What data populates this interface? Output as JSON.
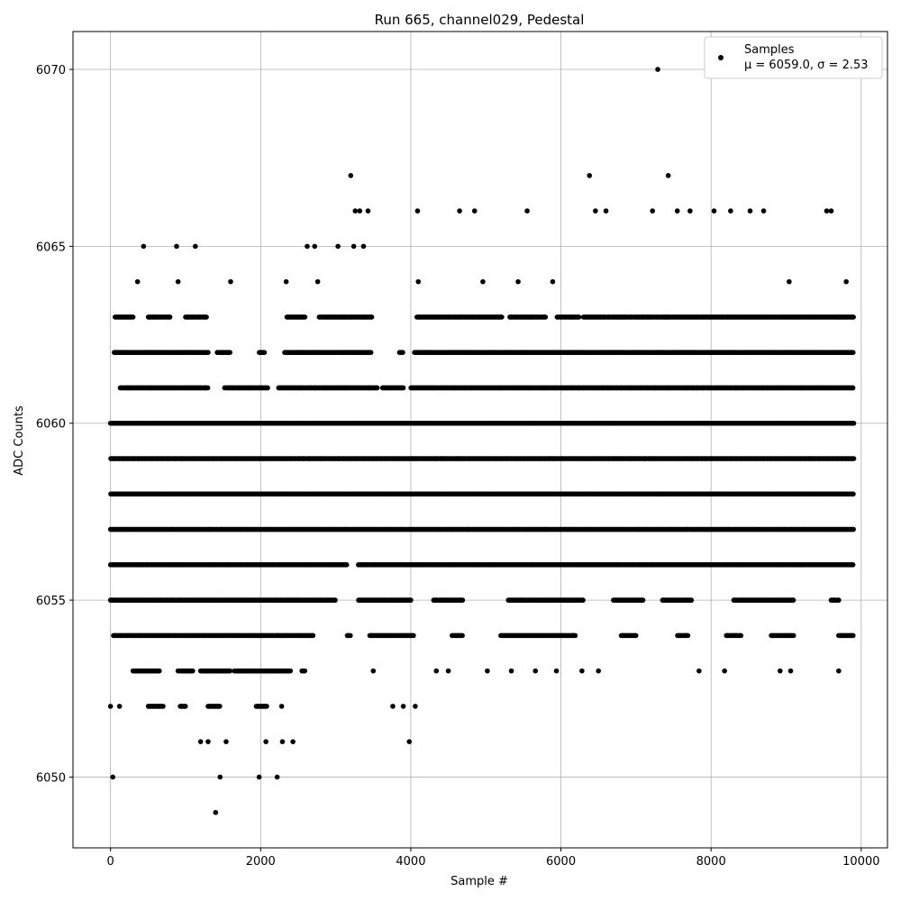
{
  "chart_data": {
    "type": "scatter",
    "title": "Run 665, channel029, Pedestal",
    "xlabel": "Sample #",
    "ylabel": "ADC Counts",
    "xlim": [
      -500,
      10350
    ],
    "ylim": [
      6048,
      6071.07
    ],
    "x_ticks": [
      0,
      2000,
      4000,
      6000,
      8000,
      10000
    ],
    "y_ticks": [
      6050,
      6055,
      6060,
      6065,
      6070
    ],
    "grid": true,
    "legend": {
      "placement": "top-right",
      "entries": [
        {
          "label_line1": "Samples",
          "label_line2": "μ = 6059.0, σ = 2.53"
        }
      ]
    },
    "series": [
      {
        "name": "Samples",
        "color": "#000000",
        "points": [
          {
            "x": 0,
            "y": 6052
          },
          {
            "x": 30,
            "y": 6050
          },
          {
            "x": 120,
            "y": 6052
          },
          {
            "x": 1400,
            "y": 6049
          },
          {
            "x": 1460,
            "y": 6050
          },
          {
            "x": 1980,
            "y": 6050
          },
          {
            "x": 2220,
            "y": 6050
          },
          {
            "x": 3200,
            "y": 6067
          },
          {
            "x": 6380,
            "y": 6067
          },
          {
            "x": 7430,
            "y": 6067
          },
          {
            "x": 7290,
            "y": 6070
          },
          {
            "x": 3980,
            "y": 6051
          },
          {
            "x": 1200,
            "y": 6051
          },
          {
            "x": 1300,
            "y": 6051
          },
          {
            "x": 1540,
            "y": 6051
          },
          {
            "x": 2070,
            "y": 6051
          },
          {
            "x": 2290,
            "y": 6051
          },
          {
            "x": 2430,
            "y": 6051
          },
          {
            "x": 440,
            "y": 6065
          },
          {
            "x": 880,
            "y": 6065
          },
          {
            "x": 1130,
            "y": 6065
          },
          {
            "x": 2620,
            "y": 6065
          },
          {
            "x": 2720,
            "y": 6065
          },
          {
            "x": 3030,
            "y": 6065
          },
          {
            "x": 3240,
            "y": 6065
          },
          {
            "x": 3370,
            "y": 6065
          },
          {
            "x": 4090,
            "y": 6066
          },
          {
            "x": 4650,
            "y": 6066
          },
          {
            "x": 4850,
            "y": 6066
          },
          {
            "x": 5550,
            "y": 6066
          },
          {
            "x": 6460,
            "y": 6066
          },
          {
            "x": 6600,
            "y": 6066
          },
          {
            "x": 7220,
            "y": 6066
          },
          {
            "x": 7550,
            "y": 6066
          },
          {
            "x": 7720,
            "y": 6066
          },
          {
            "x": 8040,
            "y": 6066
          },
          {
            "x": 8260,
            "y": 6066
          },
          {
            "x": 8520,
            "y": 6066
          },
          {
            "x": 8700,
            "y": 6066
          },
          {
            "x": 9540,
            "y": 6066
          },
          {
            "x": 9600,
            "y": 6066
          },
          {
            "x": 3260,
            "y": 6066
          },
          {
            "x": 3320,
            "y": 6066
          },
          {
            "x": 3430,
            "y": 6066
          },
          {
            "x": 360,
            "y": 6064
          },
          {
            "x": 900,
            "y": 6064
          },
          {
            "x": 1600,
            "y": 6064
          },
          {
            "x": 2340,
            "y": 6064
          },
          {
            "x": 2760,
            "y": 6064
          },
          {
            "x": 4100,
            "y": 6064
          },
          {
            "x": 4960,
            "y": 6064
          },
          {
            "x": 9800,
            "y": 6064
          },
          {
            "x": 5430,
            "y": 6064
          },
          {
            "x": 5890,
            "y": 6064
          },
          {
            "x": 9040,
            "y": 6064
          },
          {
            "x": 7840,
            "y": 6053
          },
          {
            "x": 8180,
            "y": 6053
          },
          {
            "x": 8920,
            "y": 6053
          },
          {
            "x": 9060,
            "y": 6053
          },
          {
            "x": 9700,
            "y": 6053
          },
          {
            "x": 6280,
            "y": 6053
          },
          {
            "x": 6500,
            "y": 6053
          },
          {
            "x": 5020,
            "y": 6053
          },
          {
            "x": 5340,
            "y": 6053
          },
          {
            "x": 5660,
            "y": 6053
          },
          {
            "x": 5940,
            "y": 6053
          },
          {
            "x": 4340,
            "y": 6053
          },
          {
            "x": 4500,
            "y": 6053
          },
          {
            "x": 3500,
            "y": 6053
          },
          {
            "x": 3760,
            "y": 6052
          },
          {
            "x": 3900,
            "y": 6052
          },
          {
            "x": 4060,
            "y": 6052
          }
        ],
        "bands": [
          {
            "y": 6063,
            "x_ranges": [
              [
                60,
                300
              ],
              [
                500,
                800
              ],
              [
                1000,
                1280
              ],
              [
                2350,
                2600
              ],
              [
                2780,
                3480
              ],
              [
                4080,
                5220
              ],
              [
                5320,
                5800
              ],
              [
                5950,
                6250
              ],
              [
                6300,
                9900
              ]
            ]
          },
          {
            "y": 6062,
            "x_ranges": [
              [
                50,
                1300
              ],
              [
                1420,
                1600
              ],
              [
                1980,
                2060
              ],
              [
                2320,
                3480
              ],
              [
                3850,
                3900
              ],
              [
                4050,
                9900
              ]
            ]
          },
          {
            "y": 6061,
            "x_ranges": [
              [
                130,
                1300
              ],
              [
                1520,
                2100
              ],
              [
                2240,
                3560
              ],
              [
                3620,
                3900
              ],
              [
                4000,
                9900
              ]
            ]
          },
          {
            "y": 6060,
            "x_ranges": [
              [
                0,
                9900
              ]
            ]
          },
          {
            "y": 6059,
            "x_ranges": [
              [
                0,
                9900
              ]
            ]
          },
          {
            "y": 6058,
            "x_ranges": [
              [
                0,
                9900
              ]
            ]
          },
          {
            "y": 6057,
            "x_ranges": [
              [
                0,
                9900
              ]
            ]
          },
          {
            "y": 6056,
            "x_ranges": [
              [
                0,
                3150
              ],
              [
                3300,
                9900
              ]
            ]
          },
          {
            "y": 6055,
            "x_ranges": [
              [
                0,
                3000
              ],
              [
                3300,
                4000
              ],
              [
                4300,
                4700
              ],
              [
                5300,
                6300
              ],
              [
                6700,
                7100
              ],
              [
                7350,
                7750
              ],
              [
                8300,
                9100
              ],
              [
                9600,
                9700
              ]
            ]
          },
          {
            "y": 6054,
            "x_ranges": [
              [
                40,
                2700
              ],
              [
                3150,
                3200
              ],
              [
                3450,
                4050
              ],
              [
                4550,
                4700
              ],
              [
                5200,
                6200
              ],
              [
                6800,
                7000
              ],
              [
                7550,
                7700
              ],
              [
                8200,
                8400
              ],
              [
                8800,
                9100
              ],
              [
                9700,
                9900
              ]
            ]
          },
          {
            "y": 6053,
            "x_ranges": [
              [
                300,
                650
              ],
              [
                900,
                1100
              ],
              [
                1200,
                1600
              ],
              [
                1650,
                2000
              ],
              [
                2000,
                2400
              ],
              [
                2550,
                2600
              ]
            ]
          },
          {
            "y": 6052,
            "x_ranges": [
              [
                500,
                700
              ],
              [
                930,
                1000
              ],
              [
                1300,
                1460
              ],
              [
                1940,
                2080
              ],
              [
                2280,
                2290
              ]
            ]
          }
        ]
      }
    ]
  }
}
